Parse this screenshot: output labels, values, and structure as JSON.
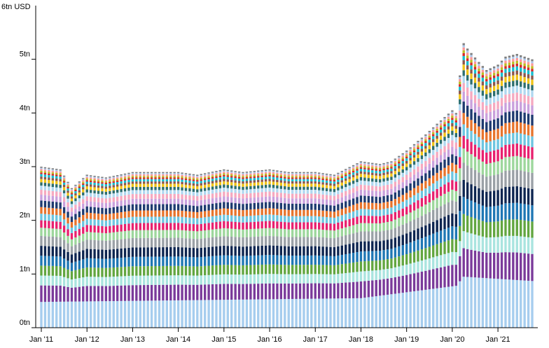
{
  "chart_data": {
    "type": "bar",
    "stacked": true,
    "title": "",
    "xlabel": "",
    "ylabel": "",
    "y_unit_label": "6tn USD",
    "ylim": [
      0,
      6
    ],
    "y_ticks": [
      {
        "value": 0,
        "label": "0tn"
      },
      {
        "value": 1,
        "label": "1tn"
      },
      {
        "value": 2,
        "label": "2tn"
      },
      {
        "value": 3,
        "label": "3tn"
      },
      {
        "value": 4,
        "label": "4tn"
      },
      {
        "value": 5,
        "label": "5tn"
      }
    ],
    "x_start": "2011-01",
    "x_end": "2021-10",
    "x_ticks": [
      {
        "month": "2011-01",
        "label": "Jan '11"
      },
      {
        "month": "2012-01",
        "label": "Jan '12"
      },
      {
        "month": "2013-01",
        "label": "Jan '13"
      },
      {
        "month": "2014-01",
        "label": "Jan '14"
      },
      {
        "month": "2015-01",
        "label": "Jan '15"
      },
      {
        "month": "2016-01",
        "label": "Jan '16"
      },
      {
        "month": "2017-01",
        "label": "Jan '17"
      },
      {
        "month": "2018-01",
        "label": "Jan '18"
      },
      {
        "month": "2019-01",
        "label": "Jan '19"
      },
      {
        "month": "2020-01",
        "label": "Jan '20"
      },
      {
        "month": "2021-01",
        "label": "Jan '21"
      }
    ],
    "total_keypoints": [
      {
        "month": "2011-01",
        "total": 3.0
      },
      {
        "month": "2011-06",
        "total": 2.95
      },
      {
        "month": "2011-09",
        "total": 2.6
      },
      {
        "month": "2012-01",
        "total": 2.85
      },
      {
        "month": "2012-06",
        "total": 2.8
      },
      {
        "month": "2013-01",
        "total": 2.9
      },
      {
        "month": "2014-01",
        "total": 2.9
      },
      {
        "month": "2014-06",
        "total": 2.85
      },
      {
        "month": "2015-01",
        "total": 2.95
      },
      {
        "month": "2015-06",
        "total": 2.9
      },
      {
        "month": "2016-01",
        "total": 2.95
      },
      {
        "month": "2016-06",
        "total": 2.9
      },
      {
        "month": "2017-01",
        "total": 2.9
      },
      {
        "month": "2017-06",
        "total": 2.85
      },
      {
        "month": "2018-01",
        "total": 3.1
      },
      {
        "month": "2018-06",
        "total": 3.05
      },
      {
        "month": "2018-09",
        "total": 3.1
      },
      {
        "month": "2019-01",
        "total": 3.3
      },
      {
        "month": "2019-06",
        "total": 3.6
      },
      {
        "month": "2019-09",
        "total": 3.8
      },
      {
        "month": "2020-01",
        "total": 4.05
      },
      {
        "month": "2020-02",
        "total": 4.0
      },
      {
        "month": "2020-03",
        "total": 4.7
      },
      {
        "month": "2020-04",
        "total": 5.3
      },
      {
        "month": "2020-05",
        "total": 5.2
      },
      {
        "month": "2020-08",
        "total": 4.95
      },
      {
        "month": "2020-10",
        "total": 4.8
      },
      {
        "month": "2021-01",
        "total": 4.9
      },
      {
        "month": "2021-03",
        "total": 5.05
      },
      {
        "month": "2021-06",
        "total": 5.1
      },
      {
        "month": "2021-10",
        "total": 5.0
      }
    ],
    "first_segment_keypoints": [
      {
        "month": "2011-01",
        "value": 0.48
      },
      {
        "month": "2018-01",
        "value": 0.55
      },
      {
        "month": "2020-02",
        "value": 0.78
      },
      {
        "month": "2020-04",
        "value": 0.95
      },
      {
        "month": "2021-10",
        "value": 0.87
      }
    ],
    "segment_shares": [
      0.16,
      0.1,
      0.06,
      0.06,
      0.06,
      0.06,
      0.06,
      0.05,
      0.045,
      0.04,
      0.04,
      0.04,
      0.035,
      0.03,
      0.025,
      0.02,
      0.02,
      0.015,
      0.015,
      0.01,
      0.01,
      0.01,
      0.008,
      0.007
    ],
    "segment_colors": [
      "#a6cdee",
      "#7a3a9a",
      "#a9e4df",
      "#62a640",
      "#1f77b4",
      "#0d2550",
      "#9aa0a6",
      "#9dd79c",
      "#e8206e",
      "#6cc5e0",
      "#e8742c",
      "#1e3a70",
      "#c9a0dc",
      "#f6a9c0",
      "#b0d8f0",
      "#2c6e6e",
      "#f0c419",
      "#8c564b",
      "#17becf",
      "#d62728",
      "#bcbd22",
      "#ff9896",
      "#aec7e8",
      "#7f7f7f"
    ]
  }
}
